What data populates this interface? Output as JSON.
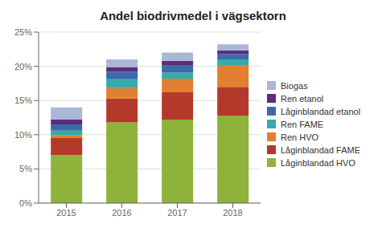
{
  "chart_data": {
    "type": "bar",
    "title": "Andel biodrivmedel i vägsektorn",
    "categories": [
      "2015",
      "2016",
      "2017",
      "2018"
    ],
    "series": [
      {
        "name": "Låginblandad HVO",
        "color": "#8db33a",
        "values": [
          7.0,
          11.8,
          12.2,
          12.8
        ]
      },
      {
        "name": "Låginblandad FAME",
        "color": "#b5392b",
        "values": [
          2.5,
          3.5,
          4.0,
          4.2
        ]
      },
      {
        "name": "Ren HVO",
        "color": "#e08030",
        "values": [
          0.4,
          1.5,
          2.0,
          3.2
        ]
      },
      {
        "name": "Ren FAME",
        "color": "#38aaaa",
        "values": [
          0.7,
          1.3,
          0.9,
          0.8
        ]
      },
      {
        "name": "Låginblandad etanol",
        "color": "#3a6caa",
        "values": [
          0.9,
          1.1,
          1.0,
          0.8
        ]
      },
      {
        "name": "Ren etanol",
        "color": "#5b2d7a",
        "values": [
          0.7,
          0.7,
          0.7,
          0.5
        ]
      },
      {
        "name": "Biogas",
        "color": "#aab8d8",
        "values": [
          1.8,
          1.1,
          1.2,
          0.9
        ]
      }
    ],
    "ylim": [
      0,
      25
    ],
    "yticks": [
      {
        "value": 0,
        "label": "0%"
      },
      {
        "value": 5,
        "label": "5%"
      },
      {
        "value": 10,
        "label": "10%"
      },
      {
        "value": 15,
        "label": "15%"
      },
      {
        "value": 20,
        "label": "20%"
      },
      {
        "value": 25,
        "label": "25%"
      }
    ],
    "stacked": true,
    "grid": true,
    "legend": "right"
  }
}
